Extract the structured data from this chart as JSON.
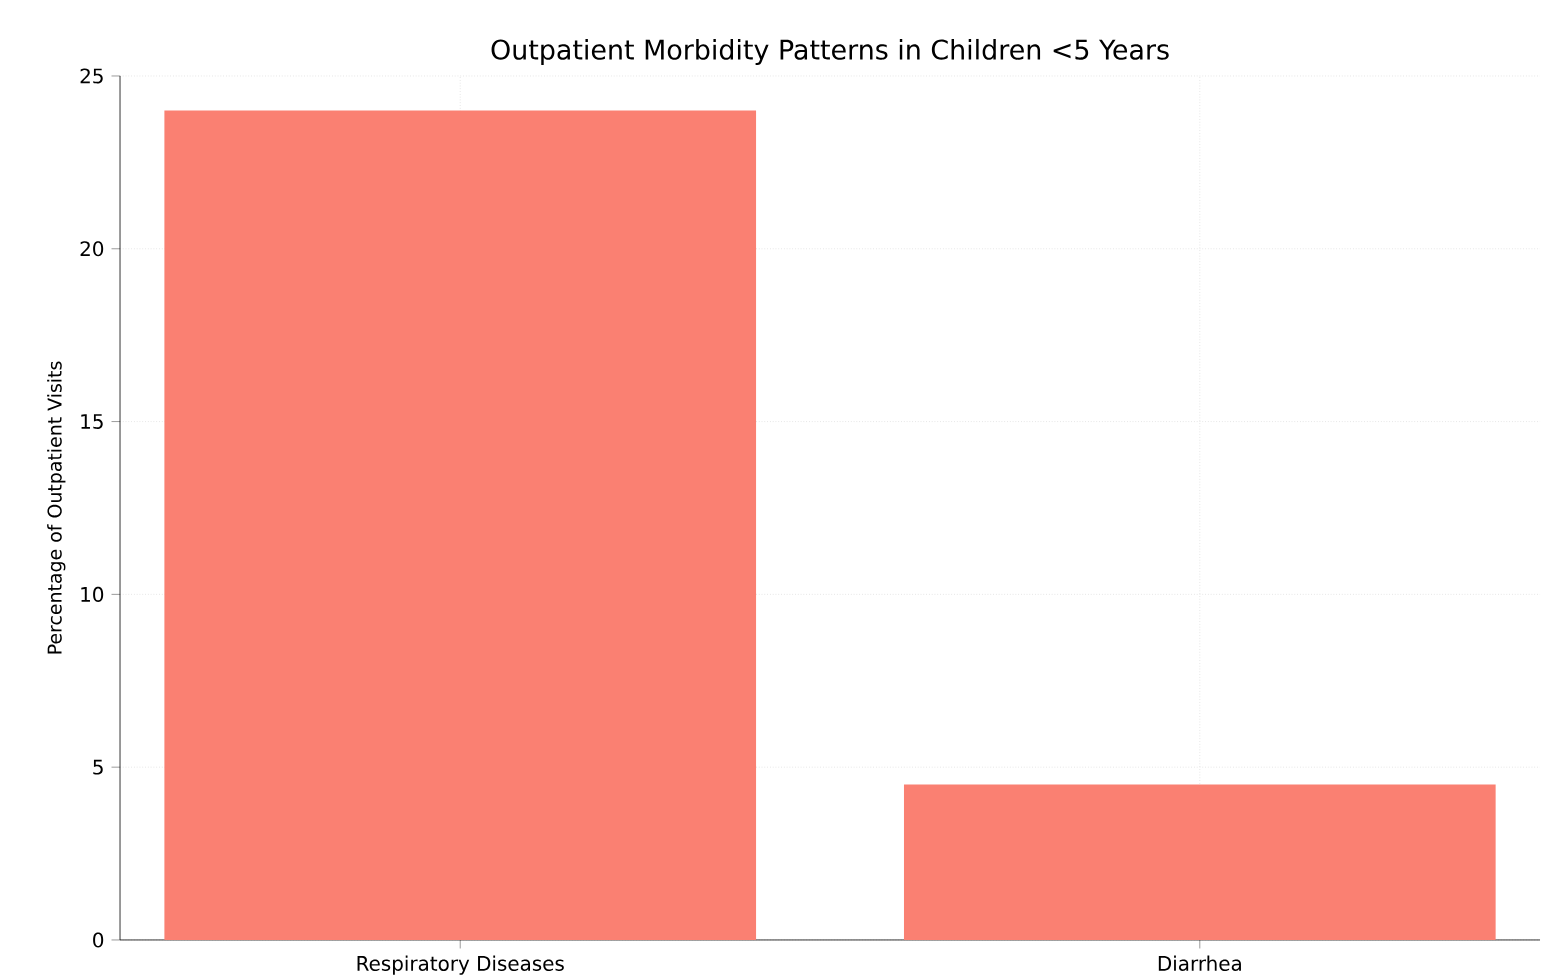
{
  "chart_data": {
    "type": "bar",
    "title": "Outpatient Morbidity Patterns in Children <5 Years",
    "ylabel": "Percentage of Outpatient Visits",
    "categories": [
      "Respiratory Diseases",
      "Diarrhea"
    ],
    "values": [
      24,
      4.5
    ],
    "color": "#fa8072",
    "ylim": [
      0,
      25
    ],
    "yticks": [
      0,
      5,
      10,
      15,
      20,
      25
    ],
    "grid": true
  }
}
